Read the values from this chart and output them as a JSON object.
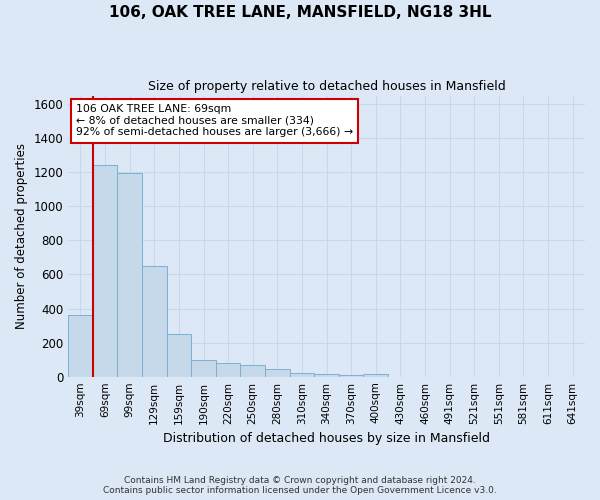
{
  "title": "106, OAK TREE LANE, MANSFIELD, NG18 3HL",
  "subtitle": "Size of property relative to detached houses in Mansfield",
  "xlabel": "Distribution of detached houses by size in Mansfield",
  "ylabel": "Number of detached properties",
  "footer_line1": "Contains HM Land Registry data © Crown copyright and database right 2024.",
  "footer_line2": "Contains public sector information licensed under the Open Government Licence v3.0.",
  "annotation_line1": "106 OAK TREE LANE: 69sqm",
  "annotation_line2": "← 8% of detached houses are smaller (334)",
  "annotation_line3": "92% of semi-detached houses are larger (3,666) →",
  "property_bin_index": 1,
  "bar_color": "#c6d9ea",
  "bar_edge_color": "#7aafd4",
  "vline_color": "#cc0000",
  "annotation_box_edge_color": "#cc0000",
  "annotation_box_face_color": "#ffffff",
  "grid_color": "#c8d8e8",
  "background_color": "#dce8f5",
  "categories": [
    "39sqm",
    "69sqm",
    "99sqm",
    "129sqm",
    "159sqm",
    "190sqm",
    "220sqm",
    "250sqm",
    "280sqm",
    "310sqm",
    "340sqm",
    "370sqm",
    "400sqm",
    "430sqm",
    "460sqm",
    "491sqm",
    "521sqm",
    "551sqm",
    "581sqm",
    "611sqm",
    "641sqm"
  ],
  "values": [
    360,
    1240,
    1195,
    650,
    248,
    100,
    82,
    68,
    48,
    22,
    18,
    12,
    18,
    0,
    0,
    0,
    0,
    0,
    0,
    0,
    0
  ],
  "ylim": [
    0,
    1650
  ],
  "yticks": [
    0,
    200,
    400,
    600,
    800,
    1000,
    1200,
    1400,
    1600
  ],
  "figsize": [
    6.0,
    5.0
  ],
  "dpi": 100
}
